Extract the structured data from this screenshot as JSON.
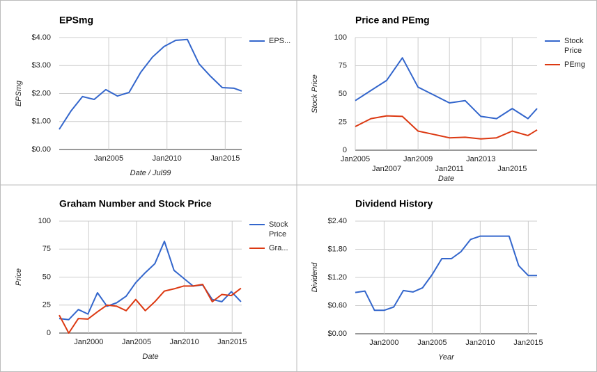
{
  "chart_data": [
    {
      "type": "line",
      "title": "EPSmg",
      "x_label": "Date / Jul99",
      "y_label": "EPSmg",
      "x": [
        "2000-10",
        "2001-10",
        "2002-10",
        "2003-10",
        "2004-10",
        "2005-10",
        "2006-10",
        "2007-10",
        "2008-10",
        "2009-10",
        "2010-10",
        "2011-10",
        "2012-10",
        "2013-10",
        "2014-10",
        "2015-10",
        "2016-06"
      ],
      "series": [
        {
          "name": "EPS...",
          "color": "#3366cc",
          "values": [
            0.72,
            1.37,
            1.89,
            1.79,
            2.14,
            1.91,
            2.04,
            2.76,
            3.3,
            3.68,
            3.9,
            3.93,
            3.06,
            2.61,
            2.21,
            2.19,
            2.09
          ]
        }
      ],
      "xlim": [
        "2000-10",
        "2016-06"
      ],
      "xticks": [
        {
          "value": "2005-01",
          "label": "Jan2005"
        },
        {
          "value": "2010-01",
          "label": "Jan2010"
        },
        {
          "value": "2015-01",
          "label": "Jan2015"
        }
      ],
      "ylim": [
        0,
        4
      ],
      "yticks": [
        {
          "value": 0,
          "label": "$0.00"
        },
        {
          "value": 1,
          "label": "$1.00"
        },
        {
          "value": 2,
          "label": "$2.00"
        },
        {
          "value": 3,
          "label": "$3.00"
        },
        {
          "value": 4,
          "label": "$4.00"
        }
      ],
      "grid": true
    },
    {
      "type": "line",
      "title": "Price and PEmg",
      "x_label": "Date",
      "y_label": "Stock Price",
      "x": [
        "2005-01",
        "2006-01",
        "2007-01",
        "2008-01",
        "2009-01",
        "2010-01",
        "2011-01",
        "2012-01",
        "2013-01",
        "2014-01",
        "2015-01",
        "2016-01",
        "2016-08"
      ],
      "series": [
        {
          "name": "Stock Price",
          "color": "#3366cc",
          "values": [
            44,
            53,
            62,
            82,
            56,
            49,
            42,
            44,
            30,
            28,
            37,
            28,
            37
          ]
        },
        {
          "name": "PEmg",
          "color": "#dc3912",
          "values": [
            21,
            28,
            30.5,
            30,
            17,
            14,
            11,
            11.5,
            10,
            11,
            17,
            13,
            18
          ]
        }
      ],
      "xlim": [
        "2005-01",
        "2016-08"
      ],
      "xticks": [
        {
          "value": "2005-01",
          "label": "Jan2005"
        },
        {
          "value": "2007-01",
          "label": "Jan2007"
        },
        {
          "value": "2009-01",
          "label": "Jan2009"
        },
        {
          "value": "2011-01",
          "label": "Jan2011"
        },
        {
          "value": "2013-01",
          "label": "Jan2013"
        },
        {
          "value": "2015-01",
          "label": "Jan2015"
        }
      ],
      "ylim": [
        0,
        100
      ],
      "yticks": [
        0,
        25,
        50,
        75,
        100
      ],
      "grid": true
    },
    {
      "type": "line",
      "title": "Graham Number and Stock Price",
      "x_label": "Date",
      "y_label": "Price",
      "x": [
        "1996-12",
        "1997-12",
        "1998-12",
        "1999-12",
        "2000-12",
        "2001-12",
        "2002-12",
        "2003-12",
        "2004-12",
        "2005-12",
        "2006-12",
        "2007-12",
        "2008-12",
        "2009-12",
        "2010-12",
        "2011-12",
        "2012-12",
        "2013-12",
        "2014-12",
        "2015-12"
      ],
      "series": [
        {
          "name": "Stock Price",
          "color": "#3366cc",
          "values": [
            13,
            12,
            21,
            17,
            36,
            24,
            27,
            33,
            45,
            54,
            62,
            82,
            56,
            49,
            42,
            43,
            30,
            28,
            37,
            28
          ]
        },
        {
          "name": "Gra...",
          "color": "#dc3912",
          "values": [
            16,
            0,
            13,
            12.5,
            19,
            25,
            24,
            20,
            30,
            20,
            28,
            37.5,
            39.5,
            42,
            42,
            43.5,
            28,
            34.5,
            33.5,
            40
          ]
        }
      ],
      "xlim": [
        "1996-12",
        "2016-01"
      ],
      "xticks": [
        {
          "value": "2000-01",
          "label": "Jan2000"
        },
        {
          "value": "2005-01",
          "label": "Jan2005"
        },
        {
          "value": "2010-01",
          "label": "Jan2010"
        },
        {
          "value": "2015-01",
          "label": "Jan2015"
        }
      ],
      "ylim": [
        0,
        100
      ],
      "yticks": [
        0,
        25,
        50,
        75,
        100
      ],
      "grid": true
    },
    {
      "type": "line",
      "title": "Dividend History",
      "x_label": "Year",
      "y_label": "Dividend",
      "x": [
        "1997-01",
        "1998-01",
        "1999-01",
        "2000-01",
        "2001-01",
        "2002-01",
        "2003-01",
        "2004-01",
        "2005-01",
        "2006-01",
        "2007-01",
        "2008-01",
        "2009-01",
        "2010-01",
        "2011-01",
        "2012-01",
        "2013-01",
        "2014-01",
        "2015-01",
        "2015-12"
      ],
      "series": [
        {
          "name": "Dividend",
          "color": "#3366cc",
          "values": [
            0.88,
            0.91,
            0.5,
            0.5,
            0.57,
            0.92,
            0.89,
            0.98,
            1.26,
            1.6,
            1.6,
            1.75,
            2.01,
            2.08,
            2.08,
            2.08,
            2.08,
            1.45,
            1.24,
            1.24
          ]
        }
      ],
      "xlim": [
        "1997-01",
        "2015-12"
      ],
      "xticks": [
        {
          "value": "2000-01",
          "label": "Jan2000"
        },
        {
          "value": "2005-01",
          "label": "Jan2005"
        },
        {
          "value": "2010-01",
          "label": "Jan2010"
        },
        {
          "value": "2015-01",
          "label": "Jan2015"
        }
      ],
      "ylim": [
        0,
        2.4
      ],
      "yticks": [
        {
          "value": 0,
          "label": "$0.00"
        },
        {
          "value": 0.6,
          "label": "$0.60"
        },
        {
          "value": 1.2,
          "label": "$1.20"
        },
        {
          "value": 1.8,
          "label": "$1.80"
        },
        {
          "value": 2.4,
          "label": "$2.40"
        }
      ],
      "grid": true,
      "legend": false
    }
  ]
}
